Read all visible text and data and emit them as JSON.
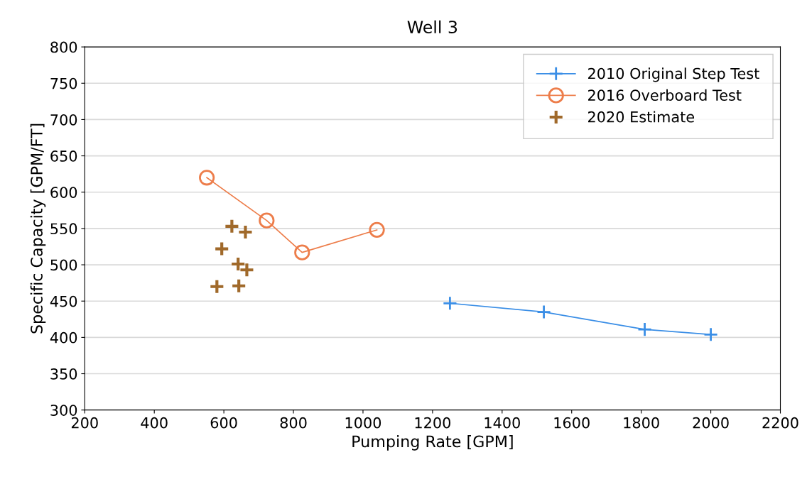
{
  "chart_data": {
    "type": "line",
    "title": "Well 3",
    "xlabel": "Pumping Rate [GPM]",
    "ylabel": "Specific Capacity [GPM/FT]",
    "xlim": [
      200,
      2200
    ],
    "xticks": [
      200,
      400,
      600,
      800,
      1000,
      1200,
      1400,
      1600,
      1800,
      2000,
      2200
    ],
    "ylim": [
      300,
      800
    ],
    "yticks": [
      300,
      350,
      400,
      450,
      500,
      550,
      600,
      650,
      700,
      750,
      800
    ],
    "grid": "y",
    "legend": "top right",
    "series": [
      {
        "name": "2010 Original Step Test",
        "color": "#3a8ee6",
        "marker": "cross",
        "line_style": "solid",
        "x": [
          1250,
          1520,
          1810,
          2000
        ],
        "values": [
          447,
          435,
          411,
          404
        ]
      },
      {
        "name": "2016 Overboard Test",
        "color": "#ed7d4a",
        "marker": "circle",
        "line_style": "solid",
        "x": [
          551,
          723,
          825,
          1040
        ],
        "values": [
          620,
          561,
          517,
          548
        ]
      },
      {
        "name": "2020 Estimate",
        "type": "scatter",
        "color": "#a0692a",
        "marker": "cross",
        "x": [
          580,
          594,
          623,
          662,
          641,
          666,
          643
        ],
        "values": [
          470,
          522,
          553,
          545,
          501,
          493,
          471
        ]
      }
    ]
  }
}
